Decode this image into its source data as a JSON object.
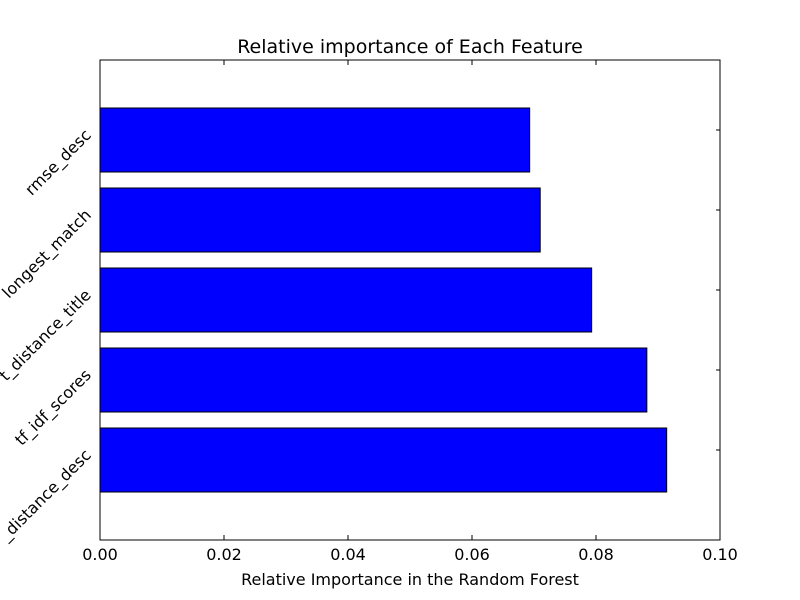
{
  "chart_data": {
    "type": "bar",
    "orientation": "horizontal",
    "title": "Relative importance of Each Feature",
    "xlabel": "Relative Importance in the Random Forest",
    "ylabel": "",
    "xlim": [
      0.0,
      0.1
    ],
    "x_ticks": [
      "0.00",
      "0.02",
      "0.04",
      "0.06",
      "0.08",
      "0.10"
    ],
    "categories": [
      "rmse_desc",
      "longest_match",
      "t_distance_title",
      "tf_idf_scores",
      "_distance_desc"
    ],
    "values": [
      0.0693,
      0.071,
      0.0793,
      0.0882,
      0.0914
    ],
    "bar_color": "#0000ff",
    "grid": false,
    "legend": "none"
  }
}
